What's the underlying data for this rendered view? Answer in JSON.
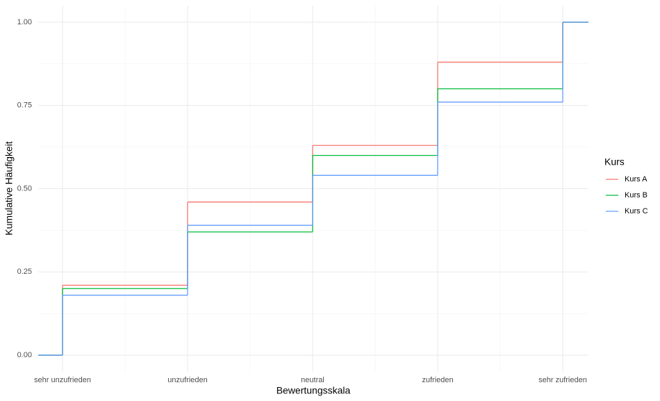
{
  "chart_data": {
    "type": "step",
    "x_label": "Bewertungsskala",
    "y_label": "Kumulative Häufigkeit",
    "categories": [
      "sehr unzufrieden",
      "unzufrieden",
      "neutral",
      "zufrieden",
      "sehr zufrieden"
    ],
    "series": [
      {
        "name": "Kurs A",
        "color": "#F8766D",
        "values": [
          0.21,
          0.46,
          0.63,
          0.88,
          1.0
        ]
      },
      {
        "name": "Kurs B",
        "color": "#00BA38",
        "values": [
          0.2,
          0.37,
          0.6,
          0.8,
          1.0
        ]
      },
      {
        "name": "Kurs C",
        "color": "#619CFF",
        "values": [
          0.18,
          0.39,
          0.54,
          0.76,
          1.0
        ]
      }
    ],
    "ylim": [
      -0.05,
      1.05
    ],
    "yticks": [
      {
        "value": 0,
        "label": "0.00"
      },
      {
        "value": 0.25,
        "label": "0.25"
      },
      {
        "value": 0.5,
        "label": "0.50"
      },
      {
        "value": 0.75,
        "label": "0.75"
      },
      {
        "value": 1,
        "label": "1.00"
      }
    ],
    "grid": true,
    "legend_title": "Kurs",
    "legend_position": "right"
  }
}
